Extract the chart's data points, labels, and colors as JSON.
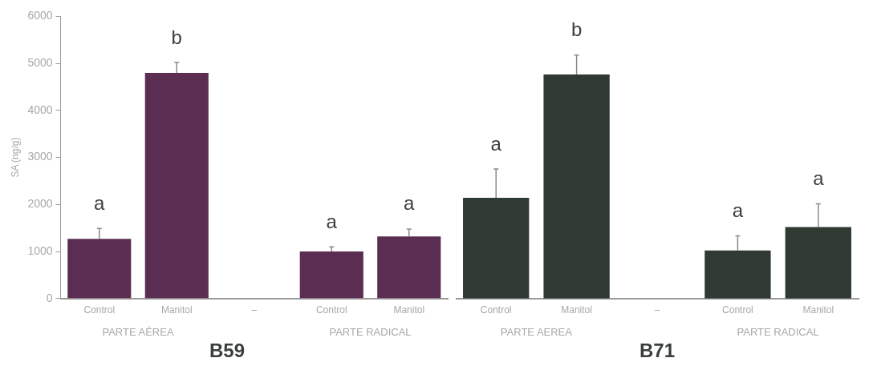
{
  "chart_data": [
    {
      "type": "bar",
      "title": "B59",
      "ylabel": "SA (ng/g)",
      "categories": [
        "Control",
        "Manitol",
        "–",
        "Control",
        "Manitol"
      ],
      "series": [
        {
          "color": "#5b2d52",
          "values": [
            1270,
            4800,
            null,
            1000,
            1320
          ],
          "errors": [
            [
              1270,
              1490
            ],
            [
              4800,
              5020
            ],
            null,
            [
              1000,
              1100
            ],
            [
              1320,
              1480
            ]
          ],
          "value_labels": [
            "a",
            "b",
            null,
            "a",
            "a"
          ]
        }
      ],
      "ylim": [
        0,
        6000
      ],
      "yticks": [
        0,
        {
          "value": 1000,
          "label": "1000"
        },
        {
          "value": 2000,
          "label": "2000"
        },
        {
          "value": 3000,
          "label": "3000"
        },
        {
          "value": 4000,
          "label": "4000"
        },
        {
          "value": 5000,
          "label": "5000"
        },
        {
          "value": 6000,
          "label": "6000"
        }
      ],
      "grid": false,
      "annotations": [
        "PARTE AÉREA",
        "PARTE RADICAL"
      ]
    },
    {
      "type": "bar",
      "title": "B71",
      "categories": [
        "Control",
        "Manitol",
        "–",
        "Control",
        "Manitol"
      ],
      "series": [
        {
          "color": "#2f3a33",
          "values": [
            2140,
            4760,
            null,
            1020,
            1520
          ],
          "errors": [
            [
              2140,
              2750
            ],
            [
              4760,
              5170
            ],
            null,
            [
              1020,
              1330
            ],
            [
              1520,
              2010
            ]
          ],
          "value_labels": [
            "a",
            "b",
            null,
            "a",
            "a"
          ]
        }
      ],
      "ylim": [
        0,
        6000
      ],
      "grid": false,
      "tick_labels": "x",
      "annotations": [
        "PARTE AEREA",
        "PARTE RADICAL"
      ]
    }
  ]
}
